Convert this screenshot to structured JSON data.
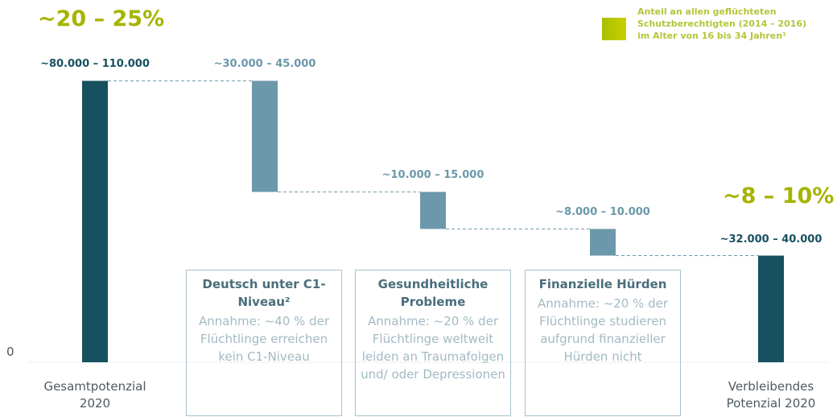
{
  "chart_data": {
    "type": "waterfall",
    "highlights": [
      "~20 – 25%",
      "~8 – 10%"
    ],
    "legend": {
      "color": "#a8c000",
      "lines": [
        "Anteil an allen geflüchteten",
        "Schutzberechtigten (2014 – 2016)",
        "im Alter von 16 bis 34 Jahren¹"
      ]
    },
    "categories": [
      "Gesamtpotenzial 2020",
      null,
      null,
      null,
      "Verbleibendes Potenzial 2020"
    ],
    "values": [
      95000,
      37500,
      12500,
      9000,
      36000
    ],
    "bar_labels": [
      "~80.000 – 110.000",
      "~30.000 – 45.000",
      "~10.000 – 15.000",
      "~8.000 – 10.000",
      "~32.000 – 40.000"
    ],
    "colors": {
      "total": "#17505f",
      "decrease": "#6b98aa"
    },
    "ylim": [
      0,
      100000
    ],
    "yticks": [
      0
    ],
    "boxes": [
      {
        "title": "Deutsch unter C1-Niveau²",
        "text": "Annahme: ~40 % der Flüchtlinge erreichen kein C1-Niveau"
      },
      {
        "title": "Gesundheitliche Probleme",
        "text": "Annahme: ~20 % der Flüchtlinge weltweit leiden an Traumafolgen und/ oder Depressionen"
      },
      {
        "title": "Finanzielle Hürden",
        "text": "Annahme: ~20 % der Flüchtlinge studieren aufgrund finanzieller Hürden nicht"
      }
    ]
  }
}
